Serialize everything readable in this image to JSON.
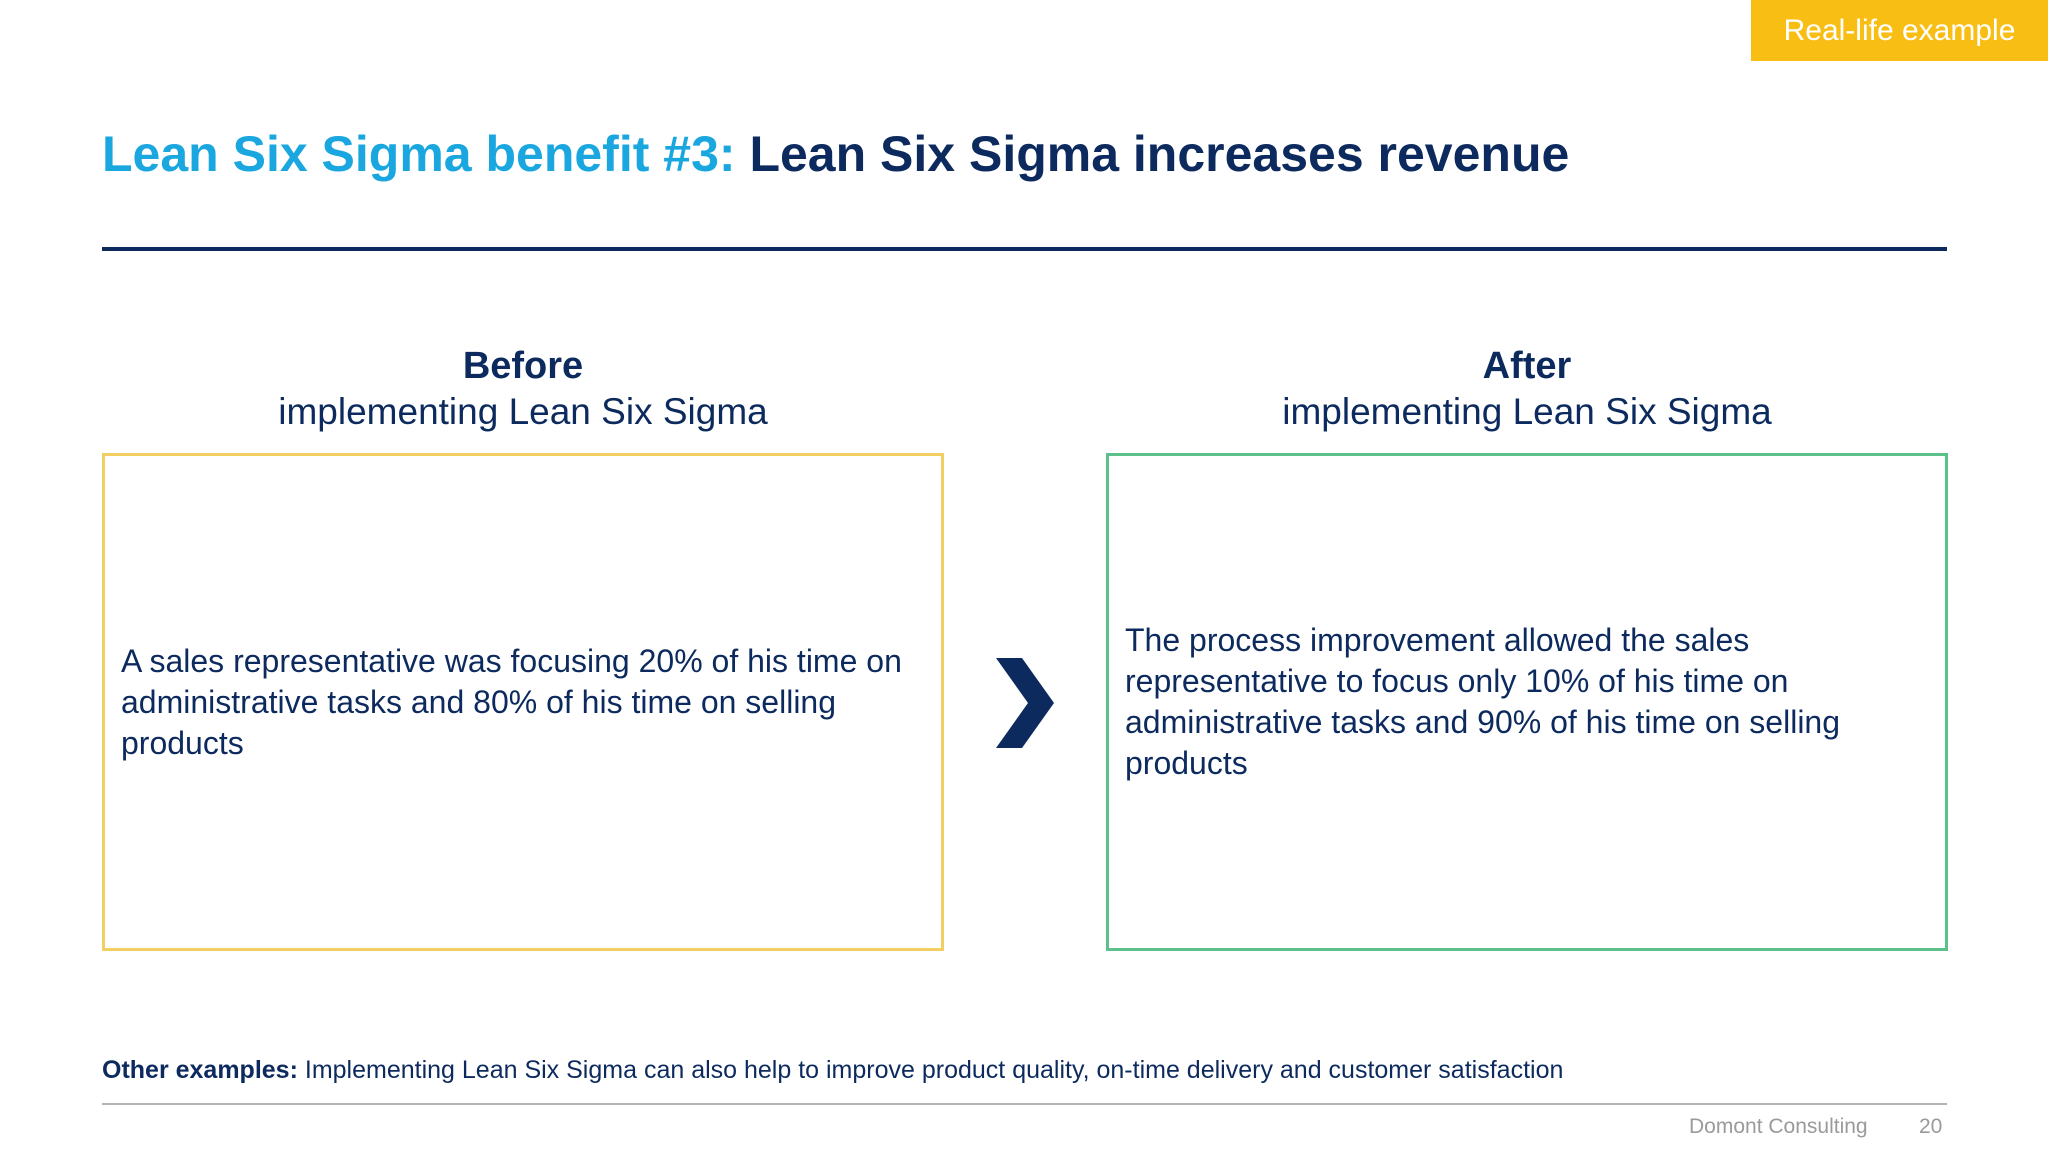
{
  "tag": {
    "label": "Real-life example",
    "color": "#f8be14"
  },
  "title": {
    "accent": "Lean Six Sigma benefit #3:",
    "main": "Lean Six Sigma increases revenue"
  },
  "before": {
    "heading": "Before",
    "subheading": "implementing Lean Six Sigma",
    "text": "A sales representative was focusing 20% of his time on administrative tasks and 80% of his time on selling products",
    "border_color": "#f2cf62"
  },
  "arrow": {
    "icon": "chevron-right-icon"
  },
  "after": {
    "heading": "After",
    "subheading": "implementing Lean Six Sigma",
    "text": "The process improvement allowed the sales representative to focus only 10% of his time on administrative tasks and 90% of his time on selling products",
    "border_color": "#5cc08b"
  },
  "footnote": {
    "label": "Other examples:",
    "text": "Implementing Lean Six Sigma can also help to improve product quality, on-time delivery and customer satisfaction"
  },
  "footer": {
    "company": "Domont Consulting",
    "page": "20"
  },
  "colors": {
    "navy": "#0c2a5e",
    "accent_blue": "#1aa7e0"
  }
}
